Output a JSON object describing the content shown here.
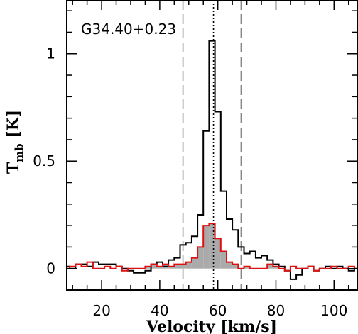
{
  "chart_data": {
    "type": "line",
    "title": "",
    "source_label": "G34.40+0.23",
    "xlabel": "Velocity [km/s]",
    "ylabel_main": "T",
    "ylabel_sub": "mb",
    "ylabel_unit": " [K]",
    "xlim": [
      8,
      108
    ],
    "ylim": [
      -0.1,
      1.25
    ],
    "xticks": [
      20,
      40,
      60,
      80,
      100
    ],
    "yticks": [
      0,
      0.5,
      1
    ],
    "ytick_labels": [
      "0",
      "0.5",
      "1"
    ],
    "grid": false,
    "step": 2,
    "vlines": [
      {
        "x": 48,
        "style": "dashed",
        "color": "#888888"
      },
      {
        "x": 58.5,
        "style": "dotted",
        "color": "#000000"
      },
      {
        "x": 68,
        "style": "dashed",
        "color": "#888888"
      }
    ],
    "series": [
      {
        "color": "#000000",
        "fill": null,
        "x": [
          8,
          10,
          12,
          14,
          16,
          18,
          20,
          22,
          24,
          26,
          28,
          30,
          32,
          34,
          36,
          38,
          40,
          42,
          44,
          46,
          48,
          50,
          52,
          54,
          56,
          58,
          60,
          62,
          64,
          66,
          68,
          70,
          72,
          74,
          76,
          78,
          80,
          82,
          84,
          86,
          88,
          90,
          92,
          94,
          96,
          98,
          100,
          102,
          104,
          106,
          108
        ],
        "y": [
          0.01,
          0.0,
          0.02,
          0.02,
          0.01,
          0.03,
          0.02,
          0.02,
          0.02,
          0.01,
          0.0,
          -0.01,
          -0.02,
          -0.02,
          -0.01,
          0.02,
          0.03,
          0.01,
          0.04,
          0.05,
          0.11,
          0.12,
          0.15,
          0.25,
          0.64,
          1.06,
          0.73,
          0.36,
          0.23,
          0.18,
          0.1,
          0.07,
          0.08,
          0.05,
          0.06,
          0.04,
          0.02,
          0.01,
          -0.01,
          -0.05,
          -0.03,
          0.0,
          0.01,
          -0.01,
          0.0,
          0.01,
          0.0,
          0.01,
          0.0,
          -0.01,
          0.0
        ]
      },
      {
        "color": "#dd1111",
        "fill": "#aaaaaa",
        "x": [
          8,
          10,
          12,
          14,
          16,
          18,
          20,
          22,
          24,
          26,
          28,
          30,
          32,
          34,
          36,
          38,
          40,
          42,
          44,
          46,
          48,
          50,
          52,
          54,
          56,
          58,
          60,
          62,
          64,
          66,
          68,
          70,
          72,
          74,
          76,
          78,
          80,
          82,
          84,
          86,
          88,
          90,
          92,
          94,
          96,
          98,
          100,
          102,
          104,
          106,
          108
        ],
        "y": [
          0.0,
          0.01,
          0.02,
          0.01,
          0.03,
          0.0,
          0.0,
          0.01,
          0.0,
          0.01,
          -0.01,
          0.0,
          0.0,
          0.0,
          0.01,
          0.02,
          0.01,
          0.02,
          0.01,
          0.02,
          0.02,
          0.03,
          0.05,
          0.1,
          0.2,
          0.21,
          0.14,
          0.08,
          0.03,
          0.02,
          0.0,
          0.01,
          0.0,
          0.0,
          0.0,
          0.02,
          0.01,
          0.0,
          -0.01,
          0.01,
          0.0,
          0.0,
          0.01,
          -0.01,
          0.0,
          0.0,
          0.01,
          0.0,
          0.0,
          0.01,
          0.0
        ]
      }
    ]
  }
}
